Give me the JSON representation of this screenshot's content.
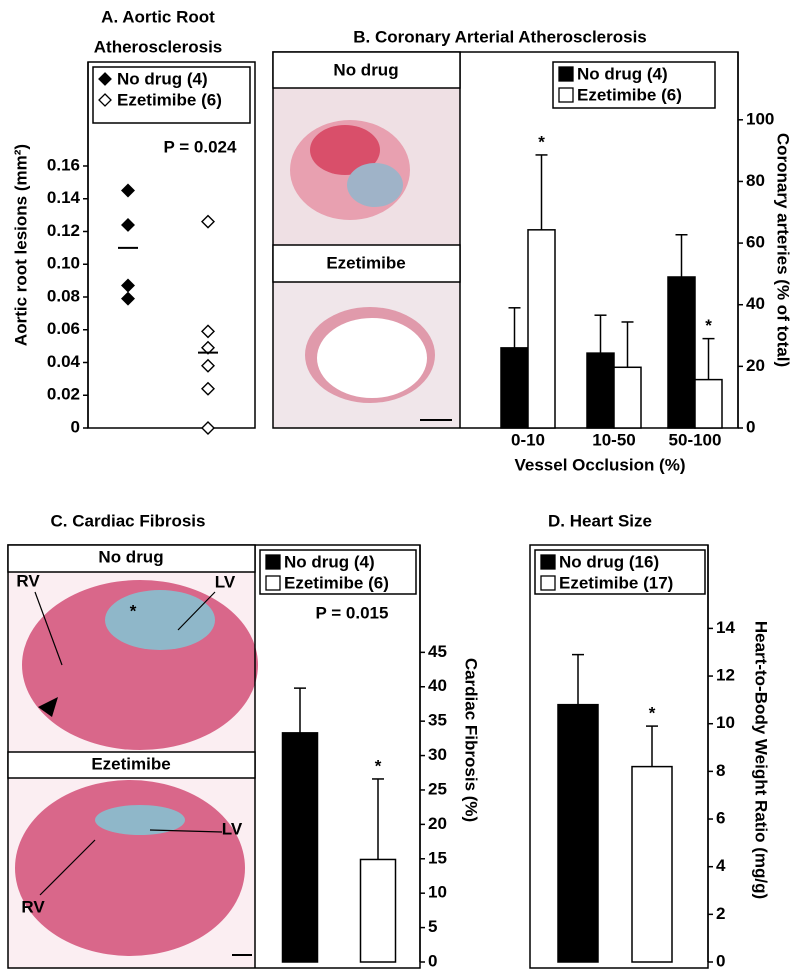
{
  "chart_data": [
    {
      "type": "dot",
      "title": [
        "A. Aortic Root",
        "Atherosclerosis"
      ],
      "ylabel": "Aortic root lesions (mm²)",
      "ylim": [
        0,
        0.2235
      ],
      "yticks": [
        0,
        0.02,
        0.04,
        0.06,
        0.08,
        {
          "value": 0.1,
          "label": "0.10"
        },
        0.12,
        0.14,
        0.16
      ],
      "annotation": "P = 0.024",
      "series": [
        {
          "name": "No drug (4)",
          "color": "#000000",
          "values": [
            0.145,
            0.124,
            0.087,
            0.079
          ],
          "mean": 0.11
        },
        {
          "name": "Ezetimibe (6)",
          "color": "#ffffff",
          "values": [
            0.126,
            0.059,
            0.049,
            0.038,
            0.024,
            0
          ],
          "mean": 0.046
        }
      ]
    },
    {
      "type": "bar",
      "title": "B. Coronary Arterial Atherosclerosis",
      "image_labels": [
        "No drug",
        "Ezetimibe"
      ],
      "categories": [
        "0-10",
        "10-50",
        "50-100"
      ],
      "xlabel": "Vessel Occlusion (%)",
      "ylabel": "Coronary arteries (% of total)",
      "ylim": [
        0,
        122
      ],
      "yticks": [
        0,
        20,
        40,
        60,
        80,
        100
      ],
      "series": [
        {
          "name": "No drug (4)",
          "color": "#000000",
          "values": [
            26,
            24.3,
            49
          ],
          "errors": [
            13,
            12.3,
            13.7
          ]
        },
        {
          "name": "Ezetimibe (6)",
          "color": "#ffffff",
          "values": [
            64.3,
            19.7,
            15.7
          ],
          "errors": [
            24.3,
            14.7,
            13.3
          ],
          "significance": [
            "*",
            null,
            "*"
          ]
        }
      ]
    },
    {
      "type": "bar",
      "title": "C. Cardiac Fibrosis",
      "image_labels": [
        "No drug",
        "Ezetimibe"
      ],
      "image_annotations": [
        "RV",
        "*",
        "LV",
        "LV",
        "RV"
      ],
      "ylabel": "Cardiac Fibrosis (%)",
      "annotation": "P = 0.015",
      "ylim": [
        0,
        60.6
      ],
      "yticks": [
        0,
        5,
        10,
        15,
        20,
        25,
        30,
        35,
        40,
        45
      ],
      "series": [
        {
          "name": "No drug (4)",
          "color": "#000000",
          "values": [
            33.3
          ],
          "errors": [
            6.5
          ]
        },
        {
          "name": "Ezetimibe (6)",
          "color": "#ffffff",
          "values": [
            14.9
          ],
          "errors": [
            11.7
          ],
          "significance": [
            "*"
          ]
        }
      ]
    },
    {
      "type": "bar",
      "title": "D. Heart Size",
      "ylabel": "Heart-to-Body Weight Ratio (mg/g)",
      "ylim": [
        0,
        17.5
      ],
      "yticks": [
        0,
        2,
        4,
        6,
        8,
        10,
        12,
        14
      ],
      "series": [
        {
          "name": "No drug (16)",
          "color": "#000000",
          "values": [
            10.8
          ],
          "errors": [
            2.1
          ]
        },
        {
          "name": "Ezetimibe (17)",
          "color": "#ffffff",
          "values": [
            8.2
          ],
          "errors": [
            1.7
          ],
          "significance": [
            "*"
          ]
        }
      ]
    }
  ]
}
